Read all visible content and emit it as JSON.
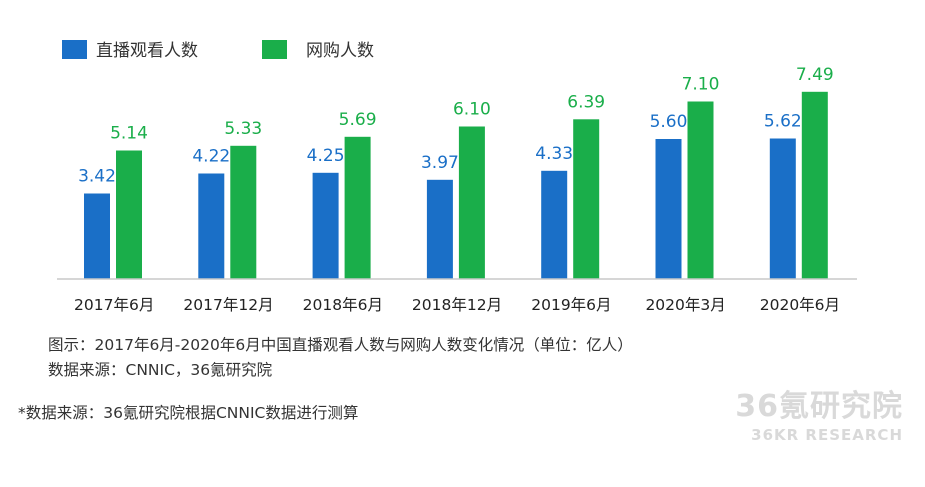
{
  "chart_data": {
    "type": "bar",
    "categories": [
      "2017年6月",
      "2017年12月",
      "2018年6月",
      "2018年12月",
      "2019年6月",
      "2020年3月",
      "2020年6月"
    ],
    "series": [
      {
        "name": "直播观看人数",
        "values": [
          3.42,
          4.22,
          4.25,
          3.97,
          4.33,
          5.6,
          5.62
        ],
        "labels": [
          "3.42",
          "4.22",
          "4.25",
          "3.97",
          "4.33",
          "5.60",
          "5.62"
        ],
        "color": "#1a6fc7"
      },
      {
        "name": "网购人数",
        "values": [
          5.14,
          5.33,
          5.69,
          6.1,
          6.39,
          7.1,
          7.49
        ],
        "labels": [
          "5.14",
          "5.33",
          "5.69",
          "6.10",
          "6.39",
          "7.10",
          "7.49"
        ],
        "color": "#1aae4a"
      }
    ],
    "ylim": [
      0,
      8
    ],
    "grid": false,
    "legend": "top-left"
  },
  "caption": {
    "line1": "图示：2017年6月-2020年6月中国直播观看人数与网购人数变化情况（单位：亿人）",
    "line2": "数据来源：CNNIC，36氪研究院"
  },
  "note": "*数据来源：36氪研究院根据CNNIC数据进行测算",
  "watermark": {
    "line1": "36氪研究院",
    "line2": "36KR RESEARCH"
  },
  "colors": {
    "axis": "#c8c8c8"
  }
}
